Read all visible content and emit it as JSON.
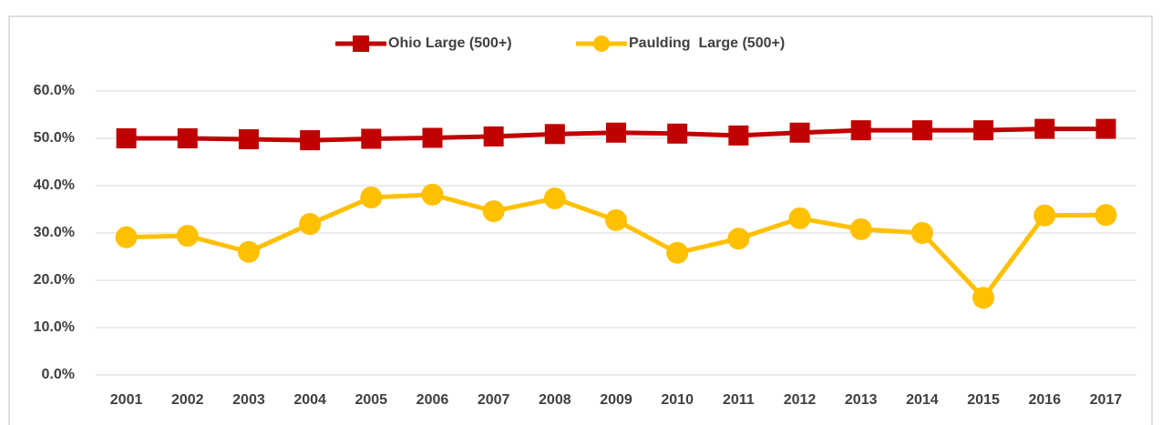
{
  "chart_data": {
    "type": "line",
    "categories": [
      "2001",
      "2002",
      "2003",
      "2004",
      "2005",
      "2006",
      "2007",
      "2008",
      "2009",
      "2010",
      "2011",
      "2012",
      "2013",
      "2014",
      "2015",
      "2016",
      "2017"
    ],
    "series": [
      {
        "name": "Ohio Large (500+)",
        "color": "#c00000",
        "marker": "square",
        "values": [
          50.0,
          50.0,
          49.8,
          49.6,
          49.9,
          50.1,
          50.4,
          50.9,
          51.2,
          51.0,
          50.6,
          51.2,
          51.7,
          51.7,
          51.7,
          52.0,
          52.0
        ]
      },
      {
        "name": "Paulding  Large (500+)",
        "color": "#ffc000",
        "marker": "circle",
        "values": [
          29.1,
          29.4,
          26.0,
          31.9,
          37.5,
          38.1,
          34.6,
          37.3,
          32.7,
          25.8,
          28.8,
          33.1,
          30.8,
          30.0,
          16.3,
          33.7,
          33.8
        ]
      }
    ],
    "ylim": [
      0,
      60
    ],
    "yticks": [
      {
        "value": 0,
        "label": "0.0%"
      },
      {
        "value": 10,
        "label": "10.0%"
      },
      {
        "value": 20,
        "label": "20.0%"
      },
      {
        "value": 30,
        "label": "30.0%"
      },
      {
        "value": 40,
        "label": "40.0%"
      },
      {
        "value": 50,
        "label": "50.0%"
      },
      {
        "value": 60,
        "label": "60.0%"
      }
    ],
    "grid": true,
    "legend": "top"
  }
}
